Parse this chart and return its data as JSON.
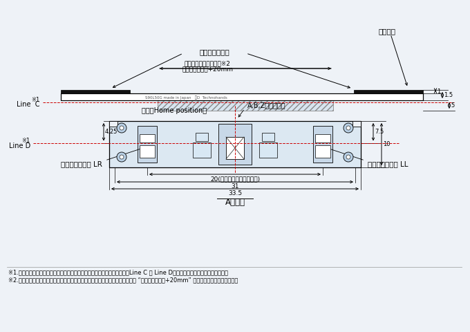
{
  "bg_color": "#eef2f7",
  "line_color": "#000000",
  "dim_color": "#000000",
  "red_line_color": "#cc0000",
  "title": "A部詳細",
  "label_scale": "スケール",
  "label_black_seal": "付属黒色シール",
  "label_seal_pos_1": "付属シール贼付け位置※2",
  "label_seal_pos_2": "必要ストローク+20mm",
  "label_home": "原点（Home position）",
  "label_lineC_1": "※1",
  "label_lineC_2": "Line  C",
  "label_lineD_1": "※1",
  "label_lineD_2": "Line D",
  "label_ABZ": "A,B,Z相光学中心",
  "label_LR": "リミットセンサ LR",
  "label_LL": "リミットセンサ LL",
  "label_pitch": "20(リミットセンサピッチ)",
  "label_31": "31",
  "label_335": "33.5",
  "label_made": "S90L50G made in Japan   ⓗD  Technohands",
  "label_note1": "※1.取付時はエンコーダヘッドとスケールスリット面を向い合せに配置し、Line C と Line Dが一数するよう取付けてください。",
  "label_note2": "※2.リミットセンサを機能させるために、付属のリミットセンサ用黒色シールを “必要ストローク+20mm” の間隔で贼付けてください。",
  "dim_1": "1",
  "dim_15": "1.5",
  "dim_5": "5",
  "dim_75": "7.5",
  "dim_10": "10",
  "dim_425": "4.25"
}
